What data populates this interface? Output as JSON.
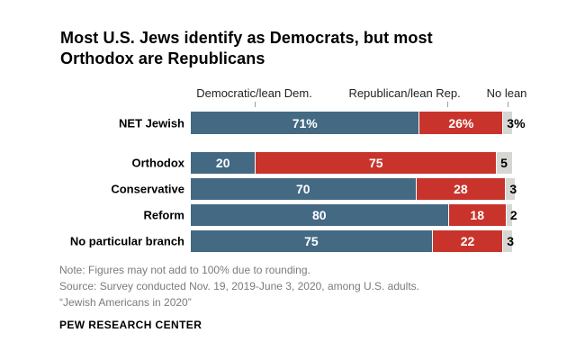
{
  "title_lines": [
    "Most U.S. Jews identify as Democrats, but most",
    "Orthodox are Republicans"
  ],
  "colors": {
    "dem_blue": "#436983",
    "rep_red": "#c8342c",
    "nolean_gray": "#d6d6d3"
  },
  "chart_data": {
    "type": "bar",
    "orientation": "horizontal-stacked",
    "value_scale": "percent",
    "xlim": [
      0,
      100
    ],
    "grid": false,
    "legend_position": "column-headers-top",
    "headers": [
      {
        "label": "Democratic/lean Dem."
      },
      {
        "label": "Republican/lean Rep."
      },
      {
        "label": "No lean"
      }
    ],
    "series_names": [
      "Democratic/lean Dem.",
      "Republican/lean Rep.",
      "No lean"
    ],
    "rows": [
      {
        "label": "NET Jewish",
        "dem": 71,
        "rep": 26,
        "nolean": 3,
        "dem_text": "71%",
        "rep_text": "26%",
        "nolean_text": "3%",
        "net": true
      },
      {
        "label": "Orthodox",
        "dem": 20,
        "rep": 75,
        "nolean": 5,
        "dem_text": "20",
        "rep_text": "75",
        "nolean_text": "5",
        "net": false
      },
      {
        "label": "Conservative",
        "dem": 70,
        "rep": 28,
        "nolean": 3,
        "dem_text": "70",
        "rep_text": "28",
        "nolean_text": "3",
        "net": false
      },
      {
        "label": "Reform",
        "dem": 80,
        "rep": 18,
        "nolean": 2,
        "dem_text": "80",
        "rep_text": "18",
        "nolean_text": "2",
        "net": false
      },
      {
        "label": "No particular branch",
        "dem": 75,
        "rep": 22,
        "nolean": 3,
        "dem_text": "75",
        "rep_text": "22",
        "nolean_text": "3",
        "net": false
      }
    ]
  },
  "footer": {
    "note": "Note: Figures may not add to 100% due to rounding.",
    "source": "Source: Survey conducted Nov. 19, 2019-June 3, 2020, among U.S. adults.",
    "report": "“Jewish Americans in 2020”",
    "brand": "PEW RESEARCH CENTER"
  }
}
